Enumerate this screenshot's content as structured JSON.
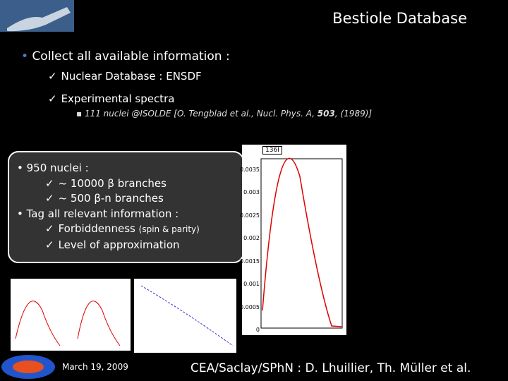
{
  "header": {
    "title": "Bestiole Database"
  },
  "bullets": {
    "main": "Collect all available information :",
    "sub": [
      "Nuclear Database : ENSDF",
      "Experimental spectra"
    ],
    "reference": {
      "text": "111 nuclei @ISOLDE  [O. Tengblad et al., Nucl. Phys. A, ",
      "volume": "503",
      "year": ", (1989)]"
    }
  },
  "callout": {
    "nuclei": "950 nuclei :",
    "branches": [
      "~ 10000 β branches",
      "~ 500 β-n branches"
    ],
    "tag": "Tag all relevant information :",
    "forbiddenness": "Forbiddenness",
    "forbiddenness_note": "(spin & parity)",
    "approximation": "Level of approximation"
  },
  "plot": {
    "title": "136I",
    "yticks": [
      "0.0035",
      "0.003",
      "0.0025",
      "0.002",
      "0.0015",
      "0.001",
      "0.0005",
      "0"
    ]
  },
  "footer": {
    "date": "March 19, 2009",
    "authors": "CEA/Saclay/SPhN : D. Lhuillier, Th. Müller et al."
  }
}
